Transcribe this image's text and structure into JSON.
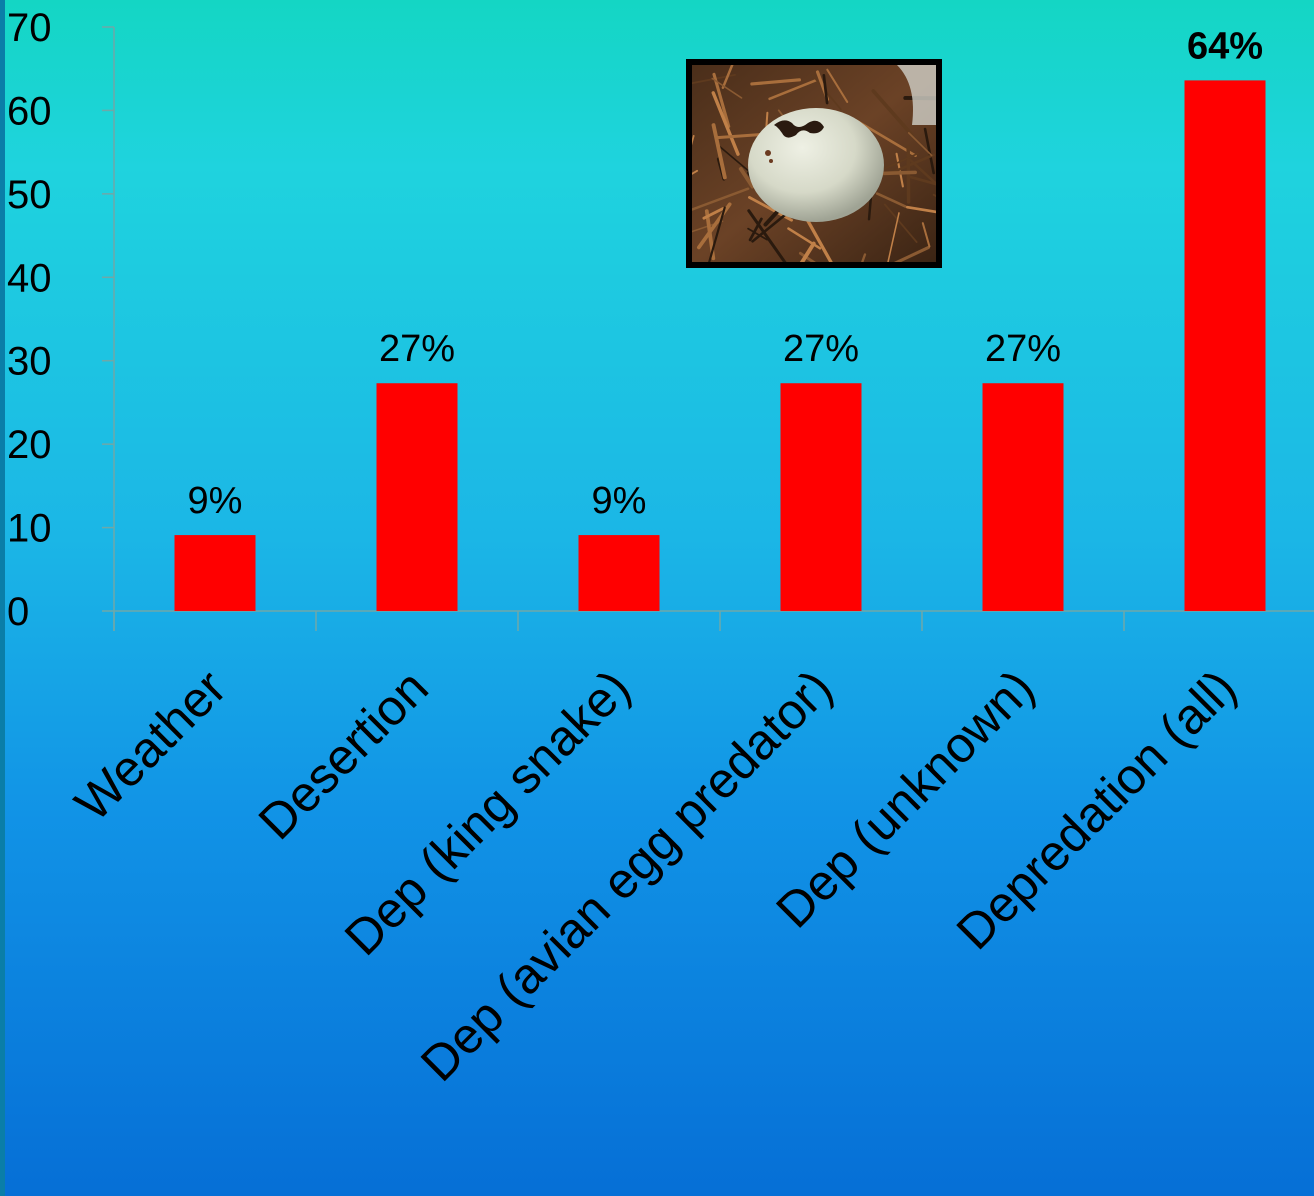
{
  "chart_data": {
    "type": "bar",
    "categories": [
      "Weather",
      "Desertion",
      "Dep (king snake)",
      "Dep (avian egg predator)",
      "Dep (unknown)",
      "Depredation (all)"
    ],
    "values": [
      9.1,
      27.3,
      9.1,
      27.3,
      27.3,
      63.6
    ],
    "data_labels": [
      "9%",
      "27%",
      "9%",
      "27%",
      "27%",
      "64%"
    ],
    "bold_labels": [
      false,
      false,
      false,
      false,
      false,
      true
    ],
    "y_ticks": [
      "0",
      "10",
      "20",
      "30",
      "40",
      "50",
      "60",
      "70"
    ],
    "ylim": [
      0,
      70
    ],
    "grid": false,
    "legend": "none",
    "bar_color": "#ff0000"
  },
  "photo": {
    "subject": "egg-in-nest",
    "colors": {
      "egg": "#d9dccd",
      "nest": "#5a3a22",
      "hole": "#2a1a10"
    }
  }
}
